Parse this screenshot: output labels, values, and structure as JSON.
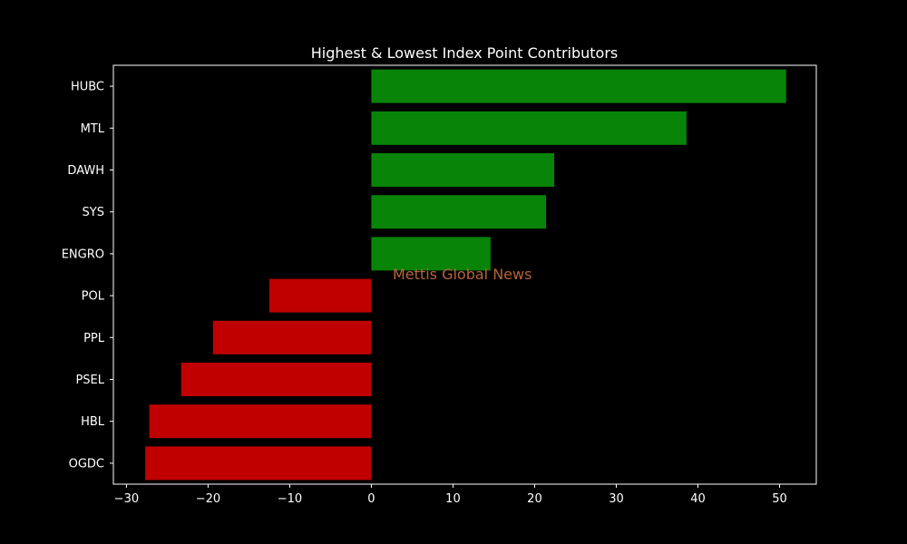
{
  "chart_data": {
    "type": "bar",
    "orientation": "horizontal",
    "title": "Highest & Lowest Index Point Contributors",
    "xlabel": "",
    "ylabel": "",
    "categories": [
      "HUBC",
      "MTL",
      "DAWH",
      "SYS",
      "ENGRO",
      "POL",
      "PPL",
      "PSEL",
      "HBL",
      "OGDC"
    ],
    "values": [
      50.8,
      38.6,
      22.4,
      21.4,
      14.6,
      -12.5,
      -19.4,
      -23.3,
      -27.2,
      -27.7
    ],
    "xlim": [
      -31.6,
      54.5
    ],
    "xticks": [
      -30,
      -20,
      -10,
      0,
      10,
      20,
      30,
      40,
      50
    ],
    "xtick_labels": [
      "−30",
      "−20",
      "−10",
      "0",
      "10",
      "20",
      "30",
      "40",
      "50"
    ],
    "grid": false,
    "legend": "none",
    "colors": {
      "positive": "#088408",
      "negative": "#c00000",
      "background": "#000000",
      "axes": "#ffffff"
    },
    "watermark": {
      "text": "Mettis Global News",
      "color": "#b5643a"
    }
  }
}
